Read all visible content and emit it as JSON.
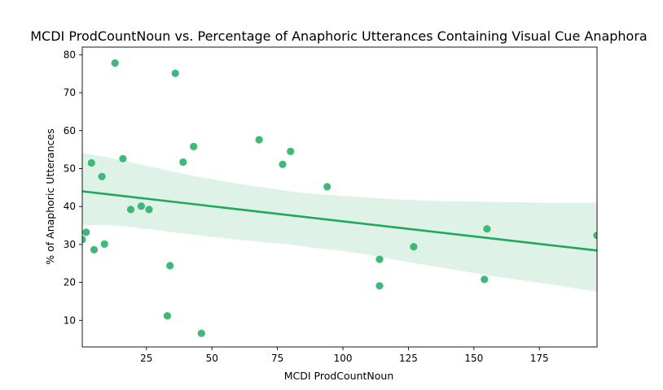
{
  "chart_data": {
    "type": "scatter",
    "title": "MCDI ProdCountNoun vs. Percentage of Anaphoric Utterances Containing Visual Cue Anaphora",
    "xlabel": "MCDI ProdCountNoun",
    "ylabel": "% of Anaphoric Utterances",
    "xlim": [
      0.5,
      197
    ],
    "ylim": [
      3,
      82
    ],
    "xticks": [
      25,
      50,
      75,
      100,
      125,
      150,
      175
    ],
    "yticks": [
      10,
      20,
      30,
      40,
      50,
      60,
      70,
      80
    ],
    "grid": false,
    "colors": {
      "points": "#2fb36e",
      "line": "#1fa85e",
      "band": "#1fa85e"
    },
    "points": [
      {
        "x": 0.5,
        "y": 31.3
      },
      {
        "x": 2,
        "y": 33.2
      },
      {
        "x": 4,
        "y": 51.5
      },
      {
        "x": 5,
        "y": 28.6
      },
      {
        "x": 8,
        "y": 47.9
      },
      {
        "x": 9,
        "y": 30.1
      },
      {
        "x": 13,
        "y": 77.8
      },
      {
        "x": 16,
        "y": 52.6
      },
      {
        "x": 19,
        "y": 39.2
      },
      {
        "x": 23,
        "y": 40.1
      },
      {
        "x": 26,
        "y": 39.2
      },
      {
        "x": 33,
        "y": 11.2
      },
      {
        "x": 34,
        "y": 24.4
      },
      {
        "x": 36,
        "y": 75.1
      },
      {
        "x": 39,
        "y": 51.7
      },
      {
        "x": 43,
        "y": 55.8
      },
      {
        "x": 46,
        "y": 6.6
      },
      {
        "x": 68,
        "y": 57.6
      },
      {
        "x": 77,
        "y": 51.1
      },
      {
        "x": 80,
        "y": 54.5
      },
      {
        "x": 94,
        "y": 45.2
      },
      {
        "x": 114,
        "y": 26.1
      },
      {
        "x": 114,
        "y": 19.1
      },
      {
        "x": 127,
        "y": 29.4
      },
      {
        "x": 154,
        "y": 20.8
      },
      {
        "x": 155,
        "y": 34.1
      },
      {
        "x": 197,
        "y": 32.4
      }
    ],
    "regression": {
      "x": [
        0.5,
        197
      ],
      "y": [
        44.0,
        28.4
      ]
    },
    "confidence_band": {
      "x": [
        0.5,
        10,
        20,
        30,
        40,
        50,
        60,
        70,
        80,
        90,
        100,
        110,
        120,
        130,
        140,
        150,
        160,
        170,
        180,
        190,
        197
      ],
      "upper": [
        54.1,
        53.0,
        51.5,
        50.0,
        48.5,
        47.2,
        46.0,
        45.0,
        44.0,
        43.3,
        42.8,
        42.3,
        41.9,
        41.6,
        41.4,
        41.3,
        41.2,
        41.1,
        41.0,
        41.0,
        41.0
      ],
      "lower": [
        35.0,
        35.2,
        34.5,
        33.7,
        32.8,
        32.0,
        31.3,
        30.6,
        30.0,
        29.0,
        28.3,
        27.2,
        26.0,
        24.8,
        23.6,
        22.5,
        21.4,
        20.4,
        19.4,
        18.3,
        17.5
      ]
    }
  }
}
